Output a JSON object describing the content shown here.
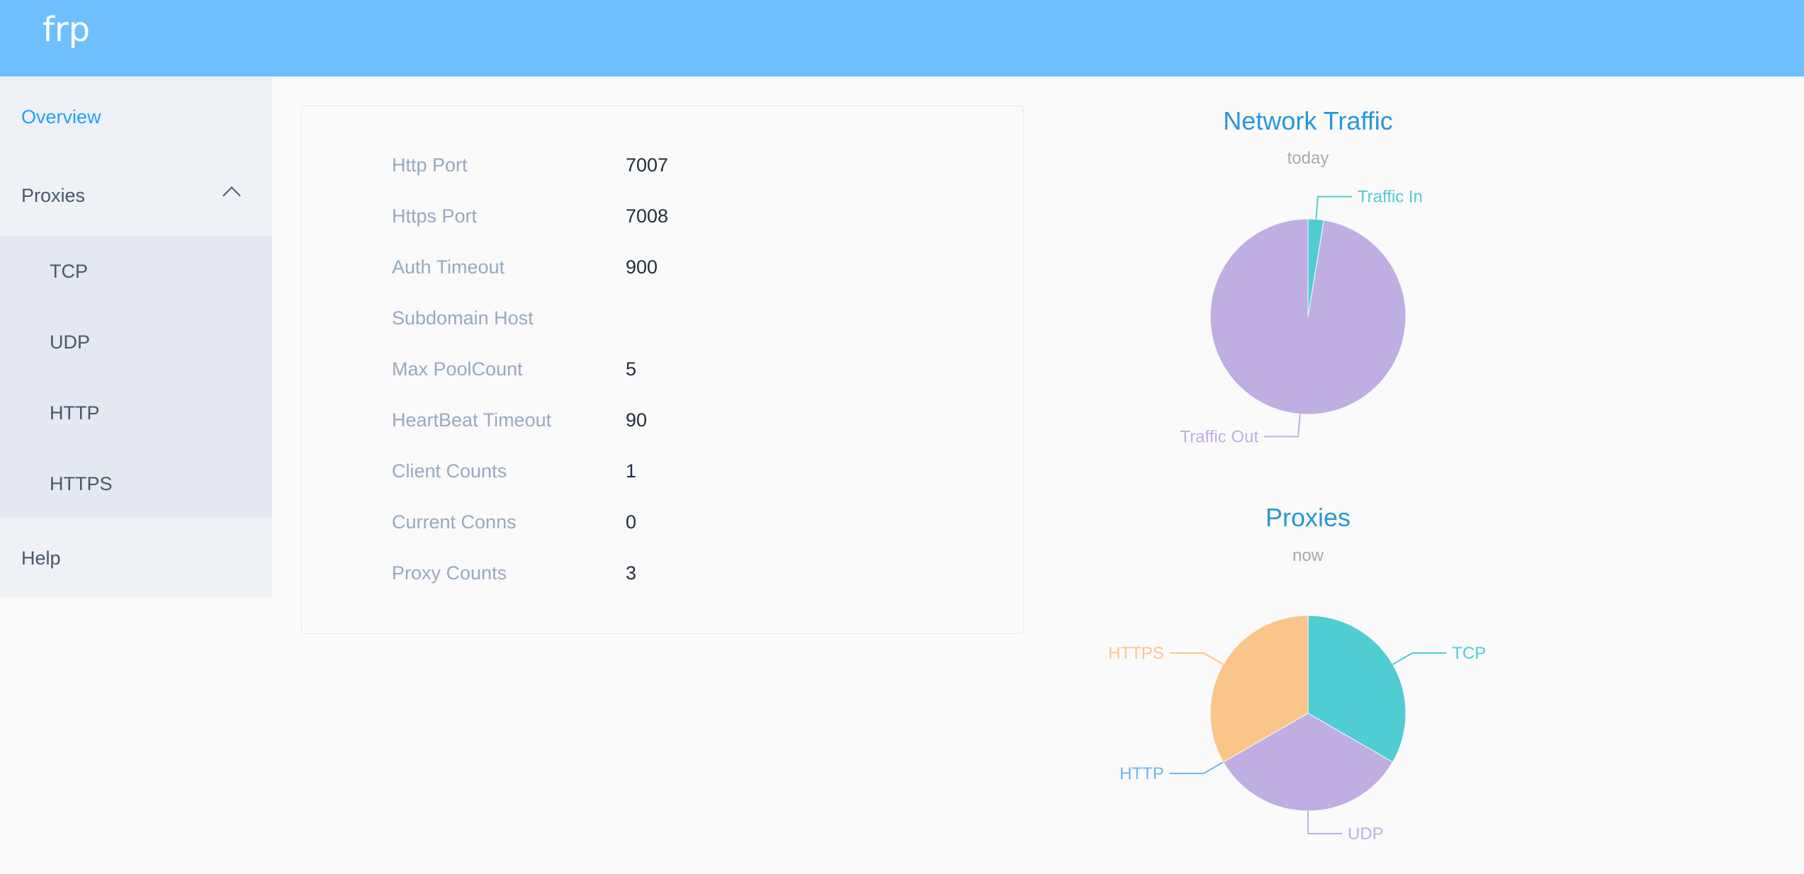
{
  "header": {
    "title": "frp"
  },
  "sidebar": {
    "items": [
      {
        "label": "Overview",
        "active": true
      },
      {
        "label": "Proxies",
        "expanded": true
      },
      {
        "label": "Help"
      }
    ],
    "proxies_sub": [
      {
        "label": "TCP"
      },
      {
        "label": "UDP"
      },
      {
        "label": "HTTP"
      },
      {
        "label": "HTTPS"
      }
    ]
  },
  "server_info": [
    {
      "label": "Http Port",
      "value": "7007"
    },
    {
      "label": "Https Port",
      "value": "7008"
    },
    {
      "label": "Auth Timeout",
      "value": "900"
    },
    {
      "label": "Subdomain Host",
      "value": ""
    },
    {
      "label": "Max PoolCount",
      "value": "5"
    },
    {
      "label": "HeartBeat Timeout",
      "value": "90"
    },
    {
      "label": "Client Counts",
      "value": "1"
    },
    {
      "label": "Current Conns",
      "value": "0"
    },
    {
      "label": "Proxy Counts",
      "value": "3"
    }
  ],
  "chart_data": [
    {
      "type": "pie",
      "title": "Network Traffic",
      "subtitle": "today",
      "slices": [
        {
          "name": "Traffic In",
          "value": 2.6,
          "color": "#4fcdd2"
        },
        {
          "name": "Traffic Out",
          "value": 97.4,
          "color": "#bfaee2"
        }
      ]
    },
    {
      "type": "pie",
      "title": "Proxies",
      "subtitle": "now",
      "slices": [
        {
          "name": "TCP",
          "value": 1,
          "color": "#4fcdd2"
        },
        {
          "name": "UDP",
          "value": 1,
          "color": "#bfaee2"
        },
        {
          "name": "HTTP",
          "value": 0,
          "color": "#6db7f5"
        },
        {
          "name": "HTTPS",
          "value": 1,
          "color": "#fbc58a"
        }
      ]
    }
  ],
  "colors": {
    "header": "#6ebffe",
    "accent": "#20a0ff",
    "chart_title": "#2a96d8"
  }
}
